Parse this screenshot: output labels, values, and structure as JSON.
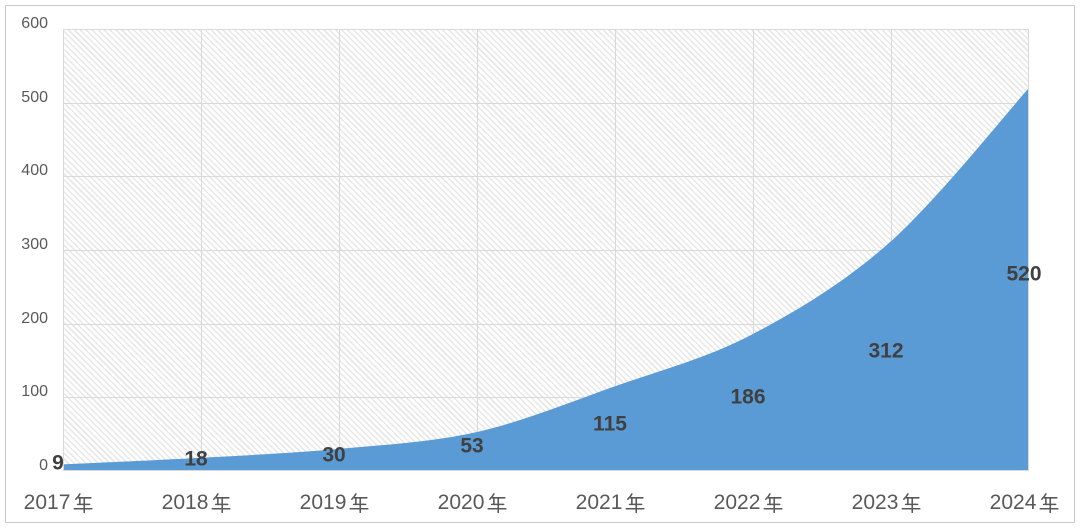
{
  "chart_data": {
    "type": "area",
    "title": "",
    "xlabel": "",
    "ylabel": "",
    "categories": [
      "2017年",
      "2018年",
      "2019年",
      "2020年",
      "2021年",
      "2022年",
      "2023年",
      "2024年"
    ],
    "values": [
      9,
      18,
      30,
      53,
      115,
      186,
      312,
      520
    ],
    "data_labels": [
      "9",
      "18",
      "30",
      "53",
      "115",
      "186",
      "312",
      "520"
    ],
    "ylim": [
      0,
      600
    ],
    "yticks": [
      0,
      100,
      200,
      300,
      400,
      500,
      600
    ],
    "grid": true,
    "gridlines": "horizontal-and-vertical",
    "legend": "none",
    "smooth_line": true,
    "plot_background": "light-diagonal-hatch",
    "colors": {
      "area_fill": "#5b9bd5",
      "data_label_text": "#404040",
      "axis_tick_text": "#595959",
      "gridline": "#d9d9d9",
      "hatch_stripe": "#e7e7e7",
      "frame_border": "#c9c9c9"
    }
  }
}
